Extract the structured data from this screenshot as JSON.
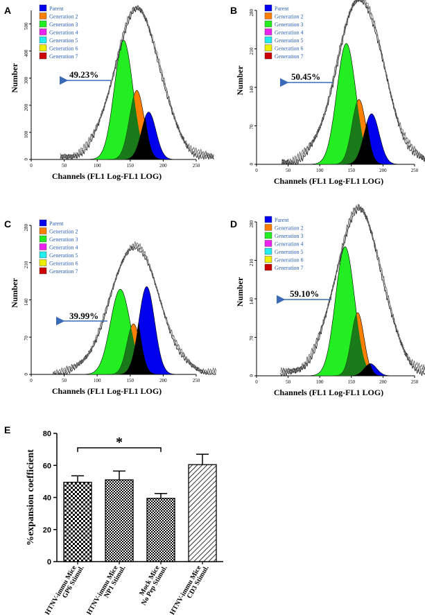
{
  "colors": {
    "parent": "#0000ee",
    "gen2": "#ff8000",
    "gen3": "#22ee22",
    "gen4": "#ee22ee",
    "gen5": "#22eeee",
    "gen6": "#eeee00",
    "gen7": "#cc0000",
    "black": "#000000",
    "darkgreen": "#1a7a1a",
    "arrow": "#3a6ab8"
  },
  "legend_items": [
    {
      "label": "Parent",
      "color_key": "parent"
    },
    {
      "label": "Generation 2",
      "color_key": "gen2"
    },
    {
      "label": "Generation 3",
      "color_key": "gen3"
    },
    {
      "label": "Generation 4",
      "color_key": "gen4"
    },
    {
      "label": "Generation 5",
      "color_key": "gen5"
    },
    {
      "label": "Generation 6",
      "color_key": "gen6"
    },
    {
      "label": "Generation 7",
      "color_key": "gen7"
    }
  ],
  "chart_data": [
    {
      "panel": "A",
      "type": "area",
      "xlabel": "Channels (FL1 Log-FL1 LOG)",
      "ylabel": "Number",
      "xlim": [
        0,
        250
      ],
      "ylim": [
        0,
        550
      ],
      "xticks": [
        0,
        50,
        100,
        150,
        200,
        250
      ],
      "yticks": [
        0,
        100,
        200,
        300,
        400,
        500
      ],
      "annotation": "49.23%",
      "envelope_peak": 550,
      "peaks": {
        "gen3": {
          "center": 140,
          "height": 440,
          "width": 14
        },
        "gen2": {
          "center": 160,
          "height": 255,
          "width": 11
        },
        "parent": {
          "center": 178,
          "height": 175,
          "width": 11
        }
      }
    },
    {
      "panel": "B",
      "type": "area",
      "xlabel": "Channels (FL1 Log-FL1 LOG)",
      "ylabel": "Number",
      "xlim": [
        0,
        250
      ],
      "ylim": [
        0,
        280
      ],
      "xticks": [
        0,
        50,
        100,
        150,
        200,
        250
      ],
      "yticks": [
        0,
        70,
        140,
        210,
        280
      ],
      "annotation": "50.45%",
      "envelope_peak": 300,
      "peaks": {
        "gen3": {
          "center": 142,
          "height": 220,
          "width": 15
        },
        "gen2": {
          "center": 162,
          "height": 118,
          "width": 11
        },
        "parent": {
          "center": 182,
          "height": 92,
          "width": 12
        }
      }
    },
    {
      "panel": "C",
      "type": "area",
      "xlabel": "Channels (FL1 Log-FL1 LOG)",
      "ylabel": "Number",
      "xlim": [
        0,
        250
      ],
      "ylim": [
        0,
        280
      ],
      "xticks": [
        0,
        50,
        100,
        150,
        200,
        250
      ],
      "yticks": [
        0,
        70,
        140,
        210,
        280
      ],
      "annotation": "39.99%",
      "envelope_peak": 240,
      "peaks": {
        "gen3": {
          "center": 135,
          "height": 160,
          "width": 15
        },
        "gen2": {
          "center": 155,
          "height": 95,
          "width": 10
        },
        "parent": {
          "center": 175,
          "height": 165,
          "width": 12
        }
      }
    },
    {
      "panel": "D",
      "type": "area",
      "xlabel": "Channels (FL1 Log-FL1 LOG)",
      "ylabel": "Number",
      "xlim": [
        0,
        250
      ],
      "ylim": [
        0,
        280
      ],
      "xticks": [
        0,
        50,
        100,
        150,
        200,
        250
      ],
      "yticks": [
        0,
        70,
        140,
        210,
        280
      ],
      "annotation": "59.10%",
      "envelope_peak": 300,
      "peaks": {
        "gen3": {
          "center": 140,
          "height": 235,
          "width": 15
        },
        "gen2": {
          "center": 160,
          "height": 115,
          "width": 10
        },
        "parent": {
          "center": 180,
          "height": 22,
          "width": 10
        }
      }
    },
    {
      "panel": "E",
      "type": "bar",
      "title": "",
      "ylabel": "%expansion coefficient",
      "ylim": [
        0,
        80
      ],
      "yticks": [
        0,
        20,
        40,
        60,
        80
      ],
      "categories": [
        "HTNV-immu Mice GP6 Stimul.",
        "HTNV-immu Mice NP1 Stimul.",
        "Mock Mice No Pep Stimul.",
        "HTNV-immu Mice CD3 Stimul."
      ],
      "category_lines": [
        [
          "HTNV-immu Mice",
          "GP6  Stimul."
        ],
        [
          "HTNV-immu Mice",
          "NP1 Stimul."
        ],
        [
          "Mock Mice",
          "No Pep Stimul."
        ],
        [
          "HTNV-immu Mice",
          "CD3 Stimul."
        ]
      ],
      "values": [
        49.5,
        51,
        39.5,
        60.5
      ],
      "errors": [
        4,
        5.5,
        3,
        6.5
      ],
      "patterns": [
        "checker",
        "checker-fine",
        "checker-fine",
        "diag"
      ],
      "significance": {
        "from": 0,
        "to": 2,
        "y": 71,
        "label": "*"
      }
    }
  ]
}
